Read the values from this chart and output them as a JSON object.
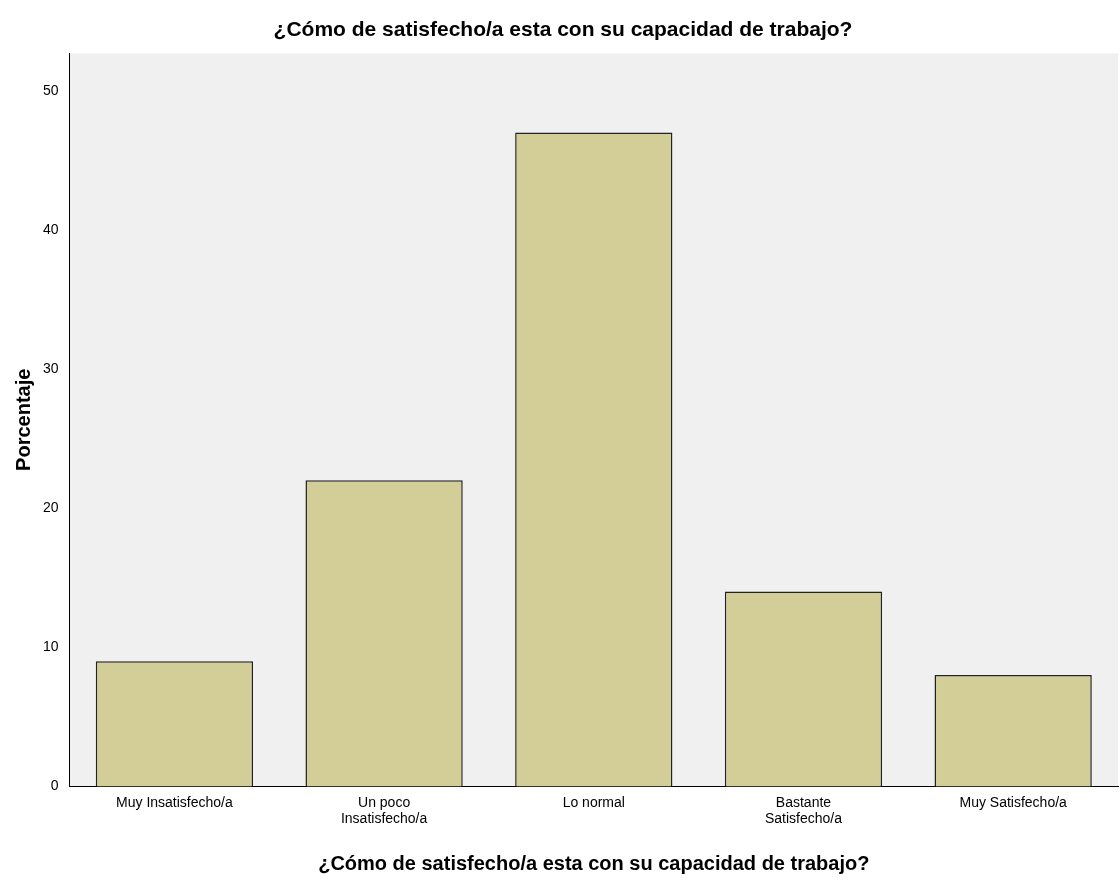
{
  "chart_data": {
    "type": "bar",
    "title": "¿Cómo de satisfecho/a esta con su capacidad de trabajo?",
    "xlabel": "¿Cómo de satisfecho/a esta con su capacidad de trabajo?",
    "ylabel": "Porcentaje",
    "categories": [
      "Muy Insatisfecho/a",
      "Un poco Insatisfecho/a",
      "Lo normal",
      "Bastante Satisfecho/a",
      "Muy Satisfecho/a"
    ],
    "values": [
      9,
      22,
      47,
      14,
      8
    ],
    "color": "#d3ce97",
    "ylim": [
      0,
      52.7
    ],
    "yticks": [
      0,
      10,
      20,
      30,
      40,
      50
    ],
    "grid": false,
    "legend": false
  }
}
